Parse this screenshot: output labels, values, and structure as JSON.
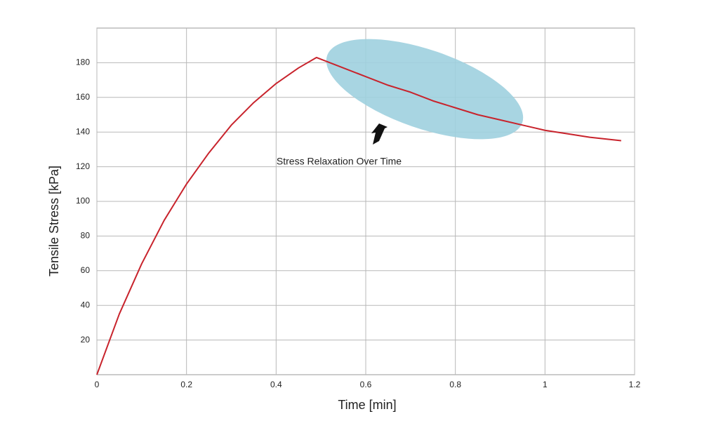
{
  "chart_data": {
    "type": "line",
    "x_label": "Time [min]",
    "y_label": "Tensile Stress [kPa]",
    "annotation": "Stress Relaxation Over Time",
    "x": [
      0,
      0.05,
      0.1,
      0.15,
      0.2,
      0.25,
      0.3,
      0.35,
      0.4,
      0.45,
      0.49,
      0.55,
      0.6,
      0.65,
      0.7,
      0.75,
      0.8,
      0.85,
      0.9,
      0.95,
      1.0,
      1.05,
      1.1,
      1.17
    ],
    "values": [
      0,
      35,
      64,
      89,
      110,
      128,
      144,
      157,
      168,
      177,
      183,
      177,
      172,
      167,
      163,
      158,
      154,
      150,
      147,
      144,
      141,
      139,
      137,
      135
    ],
    "color": "#c8232c",
    "xlim": [
      0,
      1.2
    ],
    "xticks": [
      0,
      0.2,
      0.4,
      0.6,
      0.8,
      1,
      1.2
    ],
    "ylim": [
      0,
      200
    ],
    "yticks": [
      20,
      40,
      60,
      80,
      100,
      120,
      140,
      160,
      180
    ],
    "grid": true
  }
}
